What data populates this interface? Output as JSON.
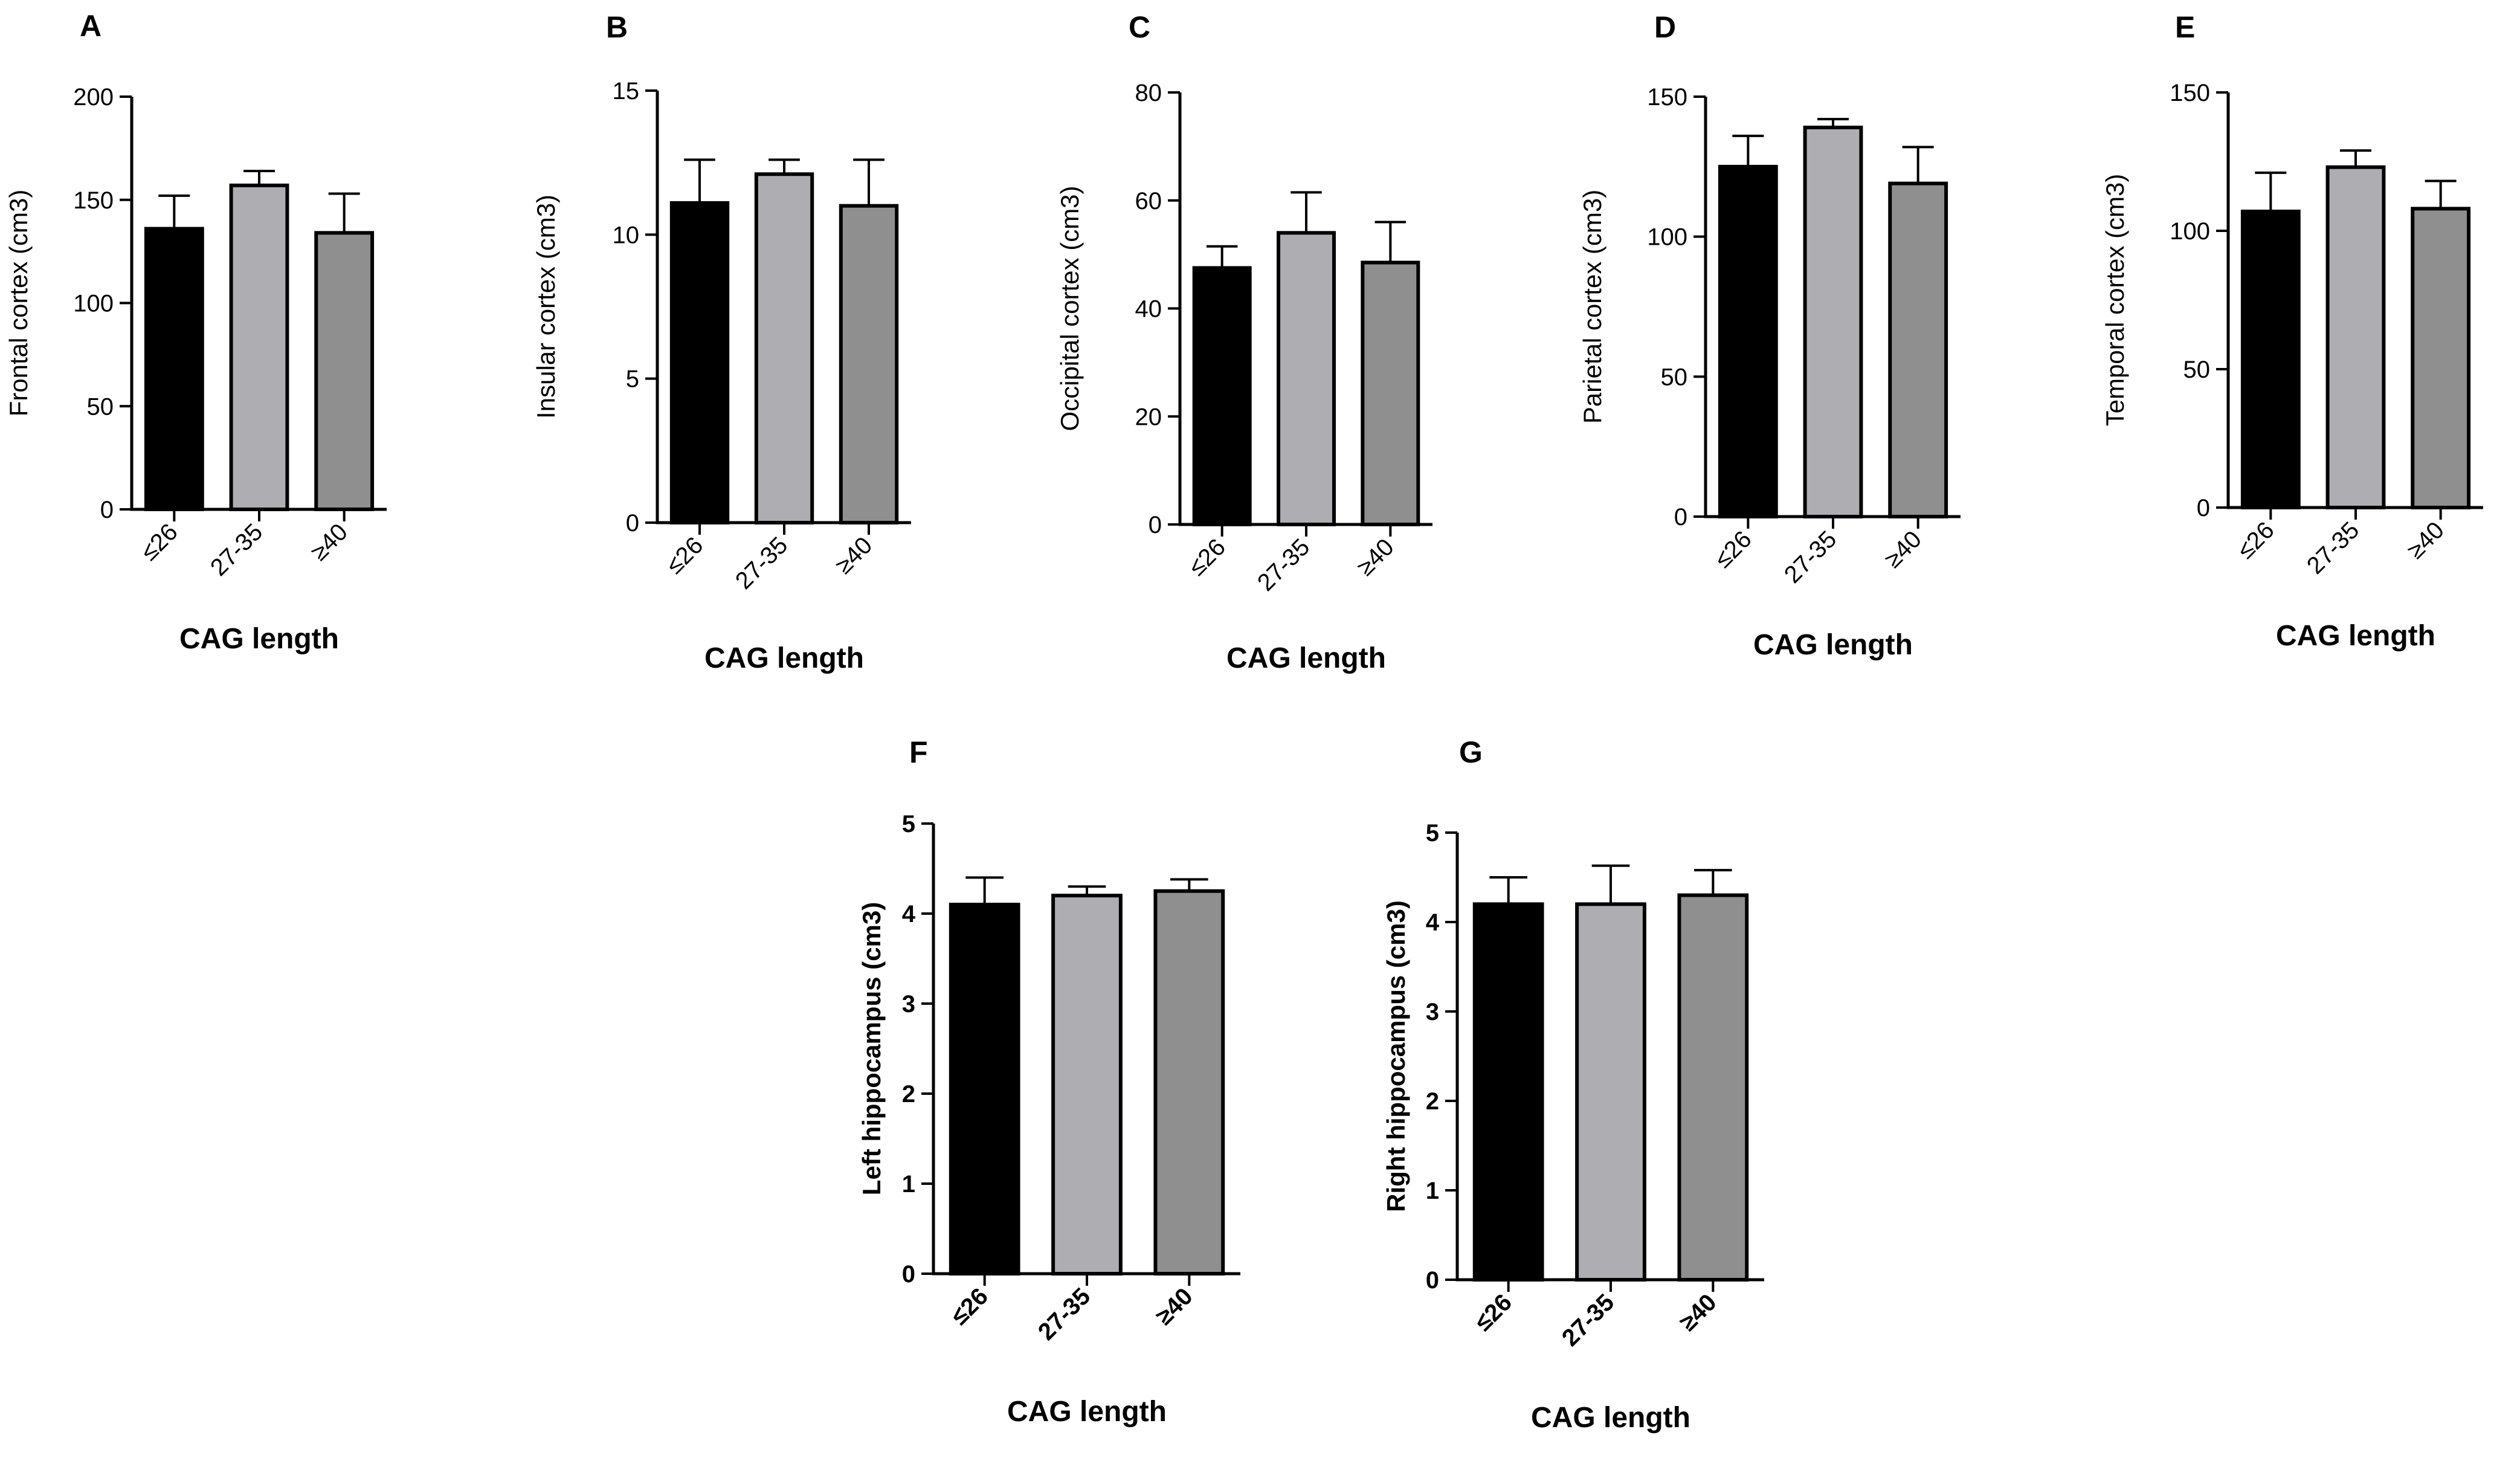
{
  "figure": {
    "background": "#ffffff",
    "bar_colors": [
      "#000000",
      "#aeaeb2",
      "#8f8f8f"
    ],
    "axis_color": "#000000"
  },
  "chart_data": [
    {
      "panel": "A",
      "type": "bar",
      "categories": [
        "≤26",
        "27-35",
        "≥40"
      ],
      "values": [
        136,
        157,
        134
      ],
      "errors": [
        16,
        7,
        19
      ],
      "ylabel": "Frontal cortex (cm3)",
      "xlabel": "CAG length",
      "ylim": [
        0,
        200
      ],
      "yticks": [
        0,
        50,
        100,
        150,
        200
      ],
      "bold_labels": false
    },
    {
      "panel": "B",
      "type": "bar",
      "categories": [
        "≤26",
        "27-35",
        "≥40"
      ],
      "values": [
        11.1,
        12.1,
        11.0
      ],
      "errors": [
        1.5,
        0.5,
        1.6
      ],
      "ylabel": "Insular cortex (cm3)",
      "xlabel": "CAG length",
      "ylim": [
        0,
        15
      ],
      "yticks": [
        0,
        5,
        10,
        15
      ],
      "bold_labels": false
    },
    {
      "panel": "C",
      "type": "bar",
      "categories": [
        "≤26",
        "27-35",
        "≥40"
      ],
      "values": [
        47.5,
        54,
        48.5
      ],
      "errors": [
        4,
        7.5,
        7.5
      ],
      "ylabel": "Occipital cortex (cm3)",
      "xlabel": "CAG length",
      "ylim": [
        0,
        80
      ],
      "yticks": [
        0,
        20,
        40,
        60,
        80
      ],
      "bold_labels": false
    },
    {
      "panel": "D",
      "type": "bar",
      "categories": [
        "≤26",
        "27-35",
        "≥40"
      ],
      "values": [
        125,
        139,
        119
      ],
      "errors": [
        11,
        3,
        13
      ],
      "ylabel": "Parietal cortex (cm3)",
      "xlabel": "CAG length",
      "ylim": [
        0,
        150
      ],
      "yticks": [
        0,
        50,
        100,
        150
      ],
      "bold_labels": false
    },
    {
      "panel": "E",
      "type": "bar",
      "categories": [
        "≤26",
        "27-35",
        "≥40"
      ],
      "values": [
        107,
        123,
        108
      ],
      "errors": [
        14,
        6,
        10
      ],
      "ylabel": "Temporal cortex (cm3)",
      "xlabel": "CAG length",
      "ylim": [
        0,
        150
      ],
      "yticks": [
        0,
        50,
        100,
        150
      ],
      "bold_labels": false
    },
    {
      "panel": "F",
      "type": "bar",
      "categories": [
        "≤26",
        "27-35",
        "≥40"
      ],
      "values": [
        4.1,
        4.2,
        4.25
      ],
      "errors": [
        0.3,
        0.1,
        0.13
      ],
      "ylabel": "Left hippocampus (cm3)",
      "xlabel": "CAG length",
      "ylim": [
        0,
        5
      ],
      "yticks": [
        0,
        1,
        2,
        3,
        4,
        5
      ],
      "bold_labels": true
    },
    {
      "panel": "G",
      "type": "bar",
      "categories": [
        "≤26",
        "27-35",
        "≥40"
      ],
      "values": [
        4.2,
        4.2,
        4.3
      ],
      "errors": [
        0.3,
        0.43,
        0.28
      ],
      "ylabel": "Right hippocampus (cm3)",
      "xlabel": "CAG length",
      "ylim": [
        0,
        5
      ],
      "yticks": [
        0,
        1,
        2,
        3,
        4,
        5
      ],
      "bold_labels": true
    }
  ]
}
